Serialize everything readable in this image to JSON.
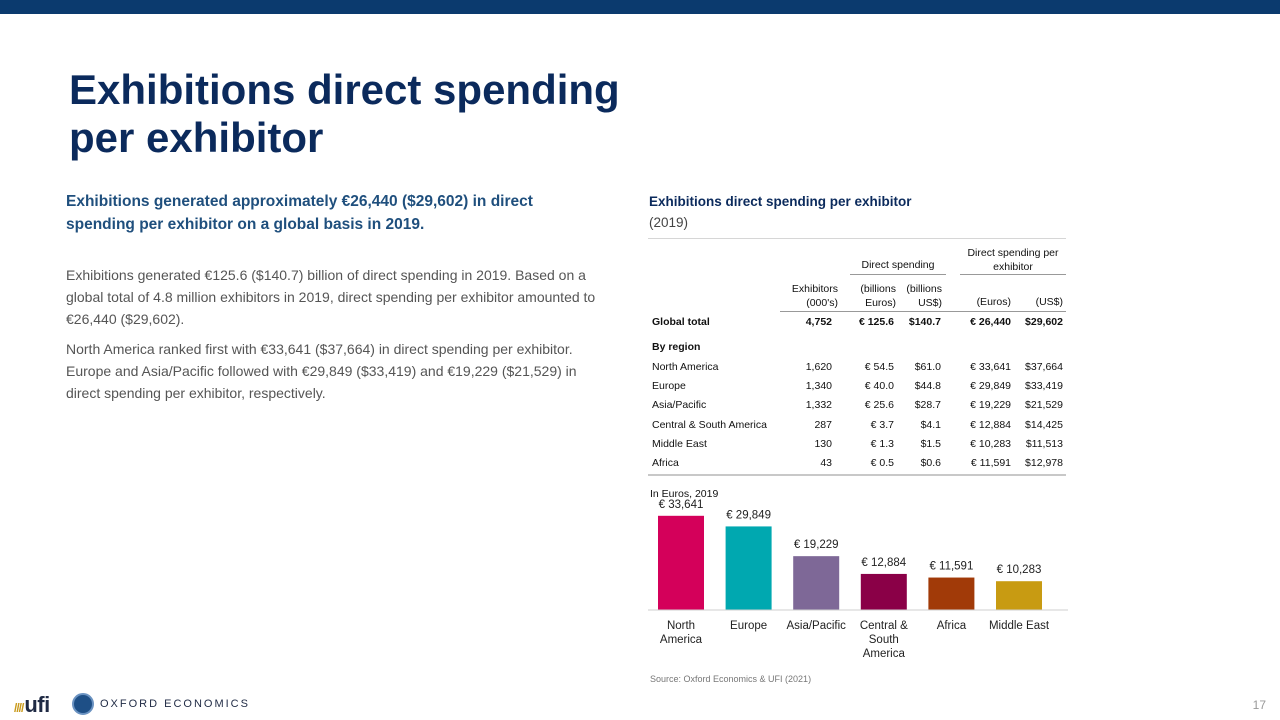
{
  "header": {
    "title": "Exhibitions direct spending per exhibitor"
  },
  "subhead": "Exhibitions generated approximately €26,440 ($29,602) in direct spending per exhibitor on a global basis in 2019.",
  "body": [
    "Exhibitions generated €125.6 ($140.7) billion of direct spending in 2019. Based on a global total of 4.8 million exhibitors in 2019, direct spending per exhibitor amounted to €26,440 ($29,602).",
    "North America ranked first with €33,641 ($37,664) in direct spending per exhibitor. Europe and Asia/Pacific followed with €29,849 ($33,419) and €19,229 ($21,529) in direct spending per exhibitor, respectively."
  ],
  "figure": {
    "title": "Exhibitions direct spending per exhibitor",
    "year": "(2019)"
  },
  "table": {
    "group_headers": {
      "direct_spending": "Direct spending",
      "per_exhibitor": "Direct spending per exhibitor"
    },
    "columns": {
      "exhibitors": "Exhibitors (000's)",
      "bn_eur": "(billions Euros)",
      "bn_usd": "(billions US$)",
      "eur": "(Euros)",
      "usd": "(US$)"
    },
    "global": {
      "label": "Global total",
      "exhibitors": "4,752",
      "bn_eur": "€ 125.6",
      "bn_usd": "$140.7",
      "eur": "€ 26,440",
      "usd": "$29,602"
    },
    "by_region_label": "By region",
    "rows": [
      {
        "label": "North America",
        "exhibitors": "1,620",
        "bn_eur": "€ 54.5",
        "bn_usd": "$61.0",
        "eur": "€ 33,641",
        "usd": "$37,664"
      },
      {
        "label": "Europe",
        "exhibitors": "1,340",
        "bn_eur": "€ 40.0",
        "bn_usd": "$44.8",
        "eur": "€ 29,849",
        "usd": "$33,419"
      },
      {
        "label": "Asia/Pacific",
        "exhibitors": "1,332",
        "bn_eur": "€ 25.6",
        "bn_usd": "$28.7",
        "eur": "€ 19,229",
        "usd": "$21,529"
      },
      {
        "label": "Central & South America",
        "exhibitors": "287",
        "bn_eur": "€ 3.7",
        "bn_usd": "$4.1",
        "eur": "€ 12,884",
        "usd": "$14,425"
      },
      {
        "label": "Middle East",
        "exhibitors": "130",
        "bn_eur": "€ 1.3",
        "bn_usd": "$1.5",
        "eur": "€ 10,283",
        "usd": "$11,513"
      },
      {
        "label": "Africa",
        "exhibitors": "43",
        "bn_eur": "€ 0.5",
        "bn_usd": "$0.6",
        "eur": "€ 11,591",
        "usd": "$12,978"
      }
    ]
  },
  "chart_data": {
    "type": "bar",
    "title": "In Euros, 2019",
    "categories": [
      "North America",
      "Europe",
      "Asia/Pacific",
      "Central & South America",
      "Africa",
      "Middle East"
    ],
    "category_lines": [
      [
        "North",
        "America"
      ],
      [
        "Europe"
      ],
      [
        "Asia/Pacific"
      ],
      [
        "Central &",
        "South",
        "America"
      ],
      [
        "Africa"
      ],
      [
        "Middle East"
      ]
    ],
    "values": [
      33641,
      29849,
      19229,
      12884,
      11591,
      10283
    ],
    "value_labels": [
      "€ 33,641",
      "€ 29,849",
      "€ 19,229",
      "€ 12,884",
      "€ 11,591",
      "€ 10,283"
    ],
    "colors": [
      "#d4005a",
      "#00a8b0",
      "#7e6897",
      "#8a0047",
      "#a13a08",
      "#c89b12"
    ],
    "ylim": [
      0,
      40000
    ],
    "xlabel": "",
    "ylabel": "",
    "grid": false
  },
  "source": "Source: Oxford Economics & UFI (2021)",
  "footer": {
    "ufi_logo": "ufi",
    "oe_logo": "OXFORD ECONOMICS",
    "page_number": "17"
  },
  "colors": {
    "brand_navy": "#0b3a6e",
    "title": "#0b2a5c",
    "subhead": "#1f4f7d"
  }
}
